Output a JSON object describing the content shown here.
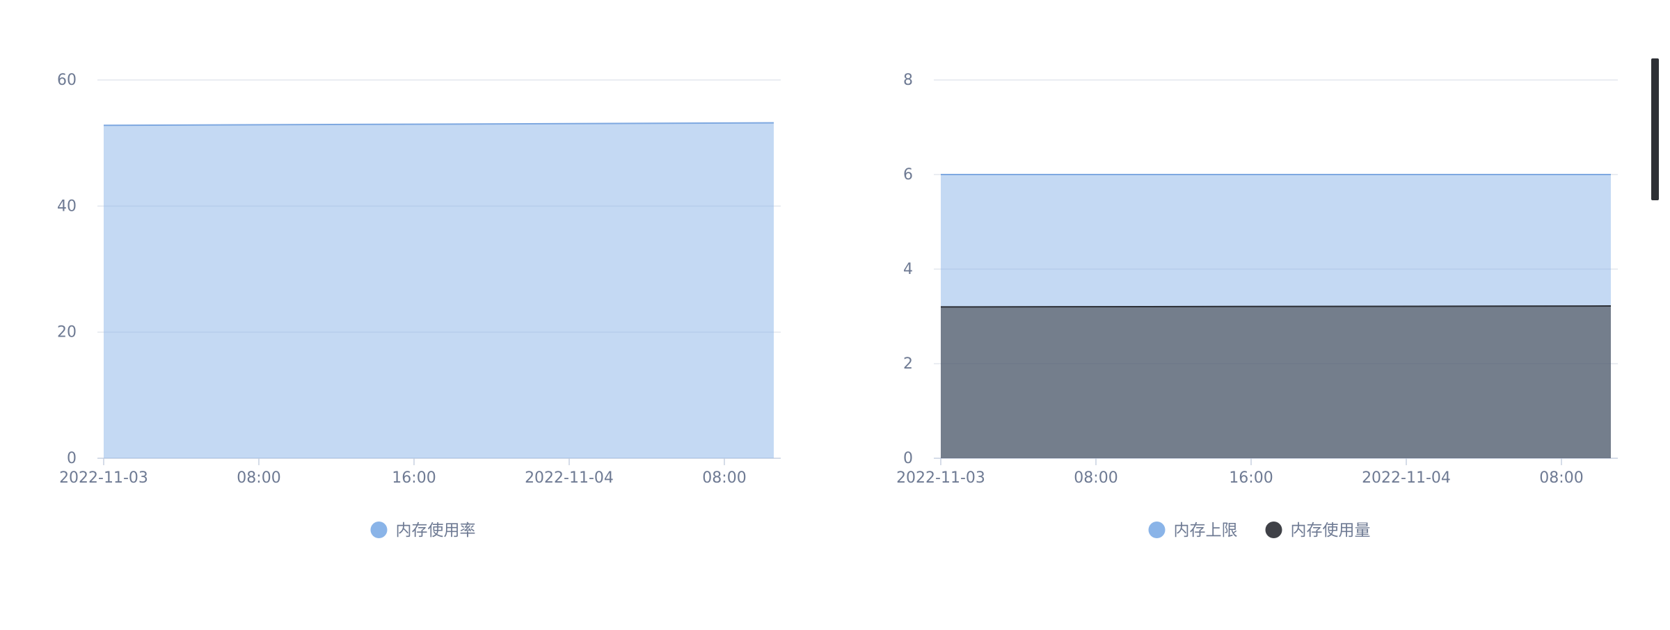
{
  "chart_data": [
    {
      "type": "area",
      "x_ticks": [
        "2022-11-03",
        "08:00",
        "16:00",
        "2022-11-04",
        "08:00"
      ],
      "x": [
        "2022-11-03 00:00",
        "2022-11-04 10:40"
      ],
      "series": [
        {
          "name": "内存使用率",
          "color": "#8ab4e8",
          "values": [
            52.8,
            53.2
          ]
        }
      ],
      "ylim": [
        0,
        60
      ],
      "y_ticks": [
        0,
        20,
        40,
        60
      ],
      "grid": true,
      "legend": "bottom-center"
    },
    {
      "type": "area",
      "x_ticks": [
        "2022-11-03",
        "08:00",
        "16:00",
        "2022-11-04",
        "08:00"
      ],
      "x": [
        "2022-11-03 00:00",
        "2022-11-04 10:40"
      ],
      "series": [
        {
          "name": "内存上限",
          "color": "#8ab4e8",
          "values": [
            6,
            6
          ]
        },
        {
          "name": "内存使用量",
          "color": "#3f4147",
          "values": [
            3.2,
            3.22
          ]
        }
      ],
      "ylim": [
        0,
        8
      ],
      "y_ticks": [
        0,
        2,
        4,
        6,
        8
      ],
      "grid": true,
      "legend": "bottom-center"
    }
  ]
}
